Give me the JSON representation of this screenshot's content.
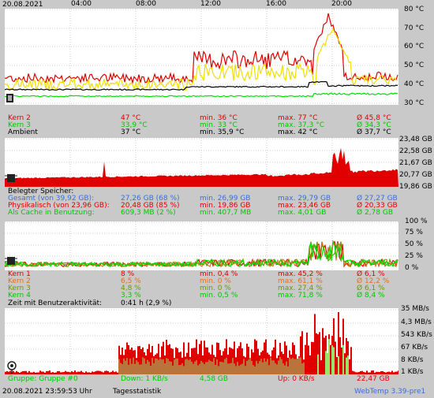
{
  "header": {
    "date": "20.08.2021",
    "hours": [
      "04:00",
      "08:00",
      "12:00",
      "16:00",
      "20:00"
    ]
  },
  "temp_panel": {
    "yticks": [
      "80 °C",
      "70 °C",
      "60 °C",
      "50 °C",
      "40 °C",
      "30 °C"
    ],
    "rows": [
      {
        "label": "",
        "cur": "",
        "min": "",
        "max": "",
        "avg": ""
      },
      {
        "label": "Kern 2",
        "cur": "47 °C",
        "min": "min. 36 °C",
        "max": "max. 77 °C",
        "avg": "Ø 45,8 °C"
      },
      {
        "label": "Kern 3",
        "cur": "33,9 °C",
        "min": "min. 33 °C",
        "max": "max. 37,3 °C",
        "avg": "Ø 34,3 °C"
      },
      {
        "label": "Ambient",
        "cur": "37 °C",
        "min": "min. 35,9 °C",
        "max": "max. 42 °C",
        "avg": "Ø 37,7 °C"
      }
    ]
  },
  "mem_panel": {
    "yticks": [
      "23,48 GB",
      "22,58 GB",
      "21,67 GB",
      "20,77 GB",
      "19,86 GB"
    ],
    "title": "Belegter Speicher:",
    "rows": [
      {
        "label": "Gesamt (von 39,92 GB):",
        "cur": "27,26 GB (68 %)",
        "min": "min. 26,99 GB",
        "max": "max. 29,79 GB",
        "avg": "Ø 27,27 GB"
      },
      {
        "label": "Physikalisch (von 23,96 GB):",
        "cur": "20,48 GB (85 %)",
        "min": "min. 19,86 GB",
        "max": "max. 23,46 GB",
        "avg": "Ø 20,33 GB"
      },
      {
        "label": "Als Cache in Benutzung:",
        "cur": "609,3 MB (2 %)",
        "min": "min. 407,7 MB",
        "max": "max. 4,01 GB",
        "avg": "Ø 2,78 GB"
      }
    ]
  },
  "cpu_panel": {
    "yticks": [
      "100 %",
      "75 %",
      "50 %",
      "25 %",
      "0 %"
    ],
    "rows": [
      {
        "label": "Kern 1",
        "cur": "8 %",
        "min": "min. 0,4 %",
        "max": "max. 45,2 %",
        "avg": "Ø 6,1 %"
      },
      {
        "label": "Kern 2",
        "cur": "6,5 %",
        "min": "min. 0 %",
        "max": "max. 61,1 %",
        "avg": "Ø 12,2 %"
      },
      {
        "label": "Kern 3",
        "cur": "4,8 %",
        "min": "min. 0 %",
        "max": "max. 27,4 %",
        "avg": "Ø 6,1 %"
      },
      {
        "label": "Kern 4",
        "cur": "3,3 %",
        "min": "min. 0,5 %",
        "max": "max. 71,8 %",
        "avg": "Ø 8,4 %"
      }
    ],
    "activity_label": "Zeit mit Benutzeraktivität:",
    "activity_value": "0:41 h (2,9 %)"
  },
  "net_panel": {
    "yticks": [
      "35 MB/s",
      "4,3 MB/s",
      "543 KB/s",
      "67 KB/s",
      "8 KB/s",
      "1 KB/s"
    ],
    "group": "Gruppe: Gruppe #0",
    "down": "Down: 1 KB/s",
    "down_avg": "4,58 GB",
    "up": "Up: 0 KB/s",
    "up_avg": "22,47 GB"
  },
  "footer": {
    "timestamp": "20.08.2021 23:59:53 Uhr",
    "stats": "Tagesstatistik",
    "version": "WebTemp 3.39-pre1"
  },
  "colors": {
    "red": "#e00000",
    "yellow": "#f0f000",
    "green": "#00e000",
    "black": "#000000",
    "orange": "#e07020",
    "olive": "#6a9a00",
    "blue": "#3a6fd8",
    "net_fill": "#b8743a"
  }
}
